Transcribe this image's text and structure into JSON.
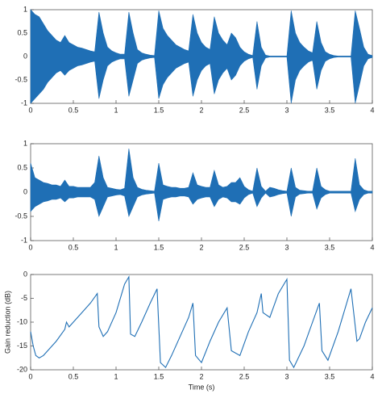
{
  "chart_data": [
    {
      "type": "area",
      "color": "#1f6fb5",
      "xlim": [
        0,
        4
      ],
      "xticks": [
        0,
        0.5,
        1,
        1.5,
        2,
        2.5,
        3,
        3.5,
        4
      ],
      "ylim": [
        -1,
        1
      ],
      "yticks": [
        -1,
        -0.5,
        0,
        0.5,
        1
      ],
      "x": [
        0,
        0.05,
        0.1,
        0.15,
        0.2,
        0.25,
        0.3,
        0.35,
        0.4,
        0.45,
        0.5,
        0.55,
        0.6,
        0.65,
        0.7,
        0.75,
        0.8,
        0.85,
        0.9,
        0.95,
        1,
        1.05,
        1.1,
        1.15,
        1.2,
        1.25,
        1.3,
        1.35,
        1.4,
        1.45,
        1.5,
        1.55,
        1.6,
        1.65,
        1.7,
        1.75,
        1.8,
        1.85,
        1.9,
        1.95,
        2,
        2.05,
        2.1,
        2.15,
        2.2,
        2.25,
        2.3,
        2.35,
        2.4,
        2.45,
        2.5,
        2.55,
        2.6,
        2.65,
        2.7,
        2.75,
        2.8,
        2.85,
        2.9,
        2.95,
        3,
        3.05,
        3.1,
        3.15,
        3.2,
        3.25,
        3.3,
        3.35,
        3.4,
        3.45,
        3.5,
        3.55,
        3.6,
        3.65,
        3.7,
        3.75,
        3.8,
        3.85,
        3.9,
        3.95,
        4
      ],
      "upper": [
        1,
        0.9,
        0.85,
        0.7,
        0.55,
        0.45,
        0.35,
        0.3,
        0.45,
        0.3,
        0.25,
        0.2,
        0.18,
        0.15,
        0.12,
        0.1,
        0.95,
        0.5,
        0.2,
        0.12,
        0.08,
        0.05,
        0.05,
        0.95,
        0.5,
        0.15,
        0.08,
        0.05,
        0.03,
        0.02,
        0.98,
        0.6,
        0.45,
        0.35,
        0.25,
        0.2,
        0.15,
        0.12,
        0.9,
        0.5,
        0.3,
        0.2,
        0.15,
        0.85,
        0.5,
        0.35,
        0.25,
        0.5,
        0.4,
        0.2,
        0.1,
        0.05,
        0.02,
        0.75,
        0.2,
        0.03,
        0.01,
        0.01,
        0.01,
        0.01,
        0.01,
        0.98,
        0.5,
        0.3,
        0.2,
        0.12,
        0.08,
        0.75,
        0.3,
        0.1,
        0.05,
        0.02,
        0.01,
        0.01,
        0.01,
        0.01,
        0.98,
        0.6,
        0.2,
        0.05,
        0.02
      ],
      "lower": [
        -1,
        -0.9,
        -0.8,
        -0.7,
        -0.55,
        -0.45,
        -0.35,
        -0.3,
        -0.4,
        -0.3,
        -0.25,
        -0.2,
        -0.18,
        -0.15,
        -0.12,
        -0.1,
        -0.9,
        -0.5,
        -0.2,
        -0.12,
        -0.08,
        -0.05,
        -0.05,
        -0.85,
        -0.5,
        -0.15,
        -0.08,
        -0.05,
        -0.03,
        -0.02,
        -0.9,
        -0.6,
        -0.45,
        -0.35,
        -0.25,
        -0.2,
        -0.15,
        -0.12,
        -0.85,
        -0.5,
        -0.3,
        -0.2,
        -0.15,
        -0.8,
        -0.5,
        -0.35,
        -0.25,
        -0.5,
        -0.4,
        -0.2,
        -0.1,
        -0.05,
        -0.02,
        -0.7,
        -0.2,
        -0.03,
        -0.01,
        -0.01,
        -0.01,
        -0.01,
        -0.01,
        -1,
        -0.5,
        -0.3,
        -0.2,
        -0.12,
        -0.08,
        -0.7,
        -0.3,
        -0.1,
        -0.05,
        -0.02,
        -0.01,
        -0.01,
        -0.01,
        -0.01,
        -1,
        -0.6,
        -0.2,
        -0.05,
        -0.02
      ]
    },
    {
      "type": "area",
      "color": "#1f6fb5",
      "xlim": [
        0,
        4
      ],
      "xticks": [
        0,
        0.5,
        1,
        1.5,
        2,
        2.5,
        3,
        3.5,
        4
      ],
      "ylim": [
        -1,
        1
      ],
      "yticks": [
        -1,
        -0.5,
        0,
        0.5,
        1
      ],
      "x": [
        0,
        0.05,
        0.1,
        0.15,
        0.2,
        0.25,
        0.3,
        0.35,
        0.4,
        0.45,
        0.5,
        0.55,
        0.6,
        0.65,
        0.7,
        0.75,
        0.8,
        0.85,
        0.9,
        0.95,
        1,
        1.05,
        1.1,
        1.15,
        1.2,
        1.25,
        1.3,
        1.35,
        1.4,
        1.45,
        1.5,
        1.55,
        1.6,
        1.65,
        1.7,
        1.75,
        1.8,
        1.85,
        1.9,
        1.95,
        2,
        2.05,
        2.1,
        2.15,
        2.2,
        2.25,
        2.3,
        2.35,
        2.4,
        2.45,
        2.5,
        2.55,
        2.6,
        2.65,
        2.7,
        2.75,
        2.8,
        2.85,
        2.9,
        2.95,
        3,
        3.05,
        3.1,
        3.15,
        3.2,
        3.25,
        3.3,
        3.35,
        3.4,
        3.45,
        3.5,
        3.55,
        3.6,
        3.65,
        3.7,
        3.75,
        3.8,
        3.85,
        3.9,
        3.95,
        4
      ],
      "upper": [
        0.6,
        0.3,
        0.25,
        0.2,
        0.18,
        0.15,
        0.15,
        0.12,
        0.25,
        0.12,
        0.12,
        0.1,
        0.1,
        0.1,
        0.1,
        0.2,
        0.75,
        0.3,
        0.1,
        0.08,
        0.06,
        0.05,
        0.08,
        0.9,
        0.3,
        0.1,
        0.06,
        0.04,
        0.03,
        0.02,
        0.6,
        0.15,
        0.12,
        0.1,
        0.1,
        0.08,
        0.08,
        0.1,
        0.4,
        0.15,
        0.12,
        0.1,
        0.1,
        0.45,
        0.15,
        0.1,
        0.12,
        0.2,
        0.2,
        0.3,
        0.12,
        0.05,
        0.02,
        0.5,
        0.12,
        0.02,
        0.1,
        0.08,
        0.05,
        0.03,
        0.02,
        0.5,
        0.1,
        0.04,
        0.03,
        0.02,
        0.02,
        0.5,
        0.12,
        0.05,
        0.02,
        0.02,
        0.02,
        0.02,
        0.02,
        0.02,
        0.7,
        0.15,
        0.05,
        0.02,
        0.02
      ],
      "lower": [
        -0.4,
        -0.3,
        -0.25,
        -0.2,
        -0.18,
        -0.15,
        -0.15,
        -0.12,
        -0.2,
        -0.12,
        -0.12,
        -0.1,
        -0.1,
        -0.1,
        -0.1,
        -0.15,
        -0.5,
        -0.3,
        -0.1,
        -0.08,
        -0.06,
        -0.05,
        -0.08,
        -0.5,
        -0.3,
        -0.1,
        -0.06,
        -0.04,
        -0.03,
        -0.02,
        -0.6,
        -0.15,
        -0.12,
        -0.1,
        -0.1,
        -0.08,
        -0.08,
        -0.1,
        -0.25,
        -0.15,
        -0.12,
        -0.1,
        -0.1,
        -0.3,
        -0.15,
        -0.1,
        -0.12,
        -0.2,
        -0.2,
        -0.25,
        -0.12,
        -0.05,
        -0.02,
        -0.3,
        -0.12,
        -0.02,
        -0.1,
        -0.08,
        -0.05,
        -0.03,
        -0.02,
        -0.5,
        -0.1,
        -0.04,
        -0.03,
        -0.02,
        -0.02,
        -0.35,
        -0.12,
        -0.05,
        -0.02,
        -0.02,
        -0.02,
        -0.02,
        -0.02,
        -0.02,
        -0.4,
        -0.15,
        -0.05,
        -0.02,
        -0.02
      ]
    },
    {
      "type": "line",
      "color": "#1f6fb5",
      "xlabel": "Time (s)",
      "ylabel": "Gain reduction (dB)",
      "xlim": [
        0,
        4
      ],
      "xticks": [
        0,
        0.5,
        1,
        1.5,
        2,
        2.5,
        3,
        3.5,
        4
      ],
      "ylim": [
        -20,
        0
      ],
      "yticks": [
        -20,
        -15,
        -10,
        -5,
        0
      ],
      "x": [
        0,
        0.03,
        0.06,
        0.1,
        0.15,
        0.2,
        0.3,
        0.4,
        0.42,
        0.45,
        0.5,
        0.6,
        0.7,
        0.78,
        0.8,
        0.85,
        0.9,
        1,
        1.1,
        1.15,
        1.17,
        1.22,
        1.3,
        1.4,
        1.48,
        1.52,
        1.58,
        1.65,
        1.75,
        1.85,
        1.9,
        1.93,
        2,
        2.1,
        2.2,
        2.3,
        2.35,
        2.45,
        2.55,
        2.65,
        2.7,
        2.72,
        2.8,
        2.9,
        3,
        3.03,
        3.08,
        3.2,
        3.3,
        3.38,
        3.41,
        3.48,
        3.6,
        3.7,
        3.75,
        3.82,
        3.85,
        3.92,
        4
      ],
      "values": [
        -12,
        -15,
        -17,
        -17.5,
        -17,
        -16,
        -14,
        -11.5,
        -10,
        -11,
        -10,
        -8,
        -6,
        -4,
        -11,
        -13,
        -12,
        -8,
        -2,
        -0.5,
        -12.5,
        -13,
        -10,
        -6,
        -3,
        -18.5,
        -19.5,
        -17,
        -13,
        -9,
        -6,
        -17,
        -18.5,
        -14,
        -10,
        -7,
        -16,
        -17,
        -12,
        -8,
        -4,
        -8,
        -9,
        -4,
        -1,
        -18,
        -19.5,
        -15,
        -10,
        -6,
        -16,
        -18,
        -12,
        -6,
        -3,
        -14,
        -13.5,
        -10,
        -7
      ]
    }
  ]
}
